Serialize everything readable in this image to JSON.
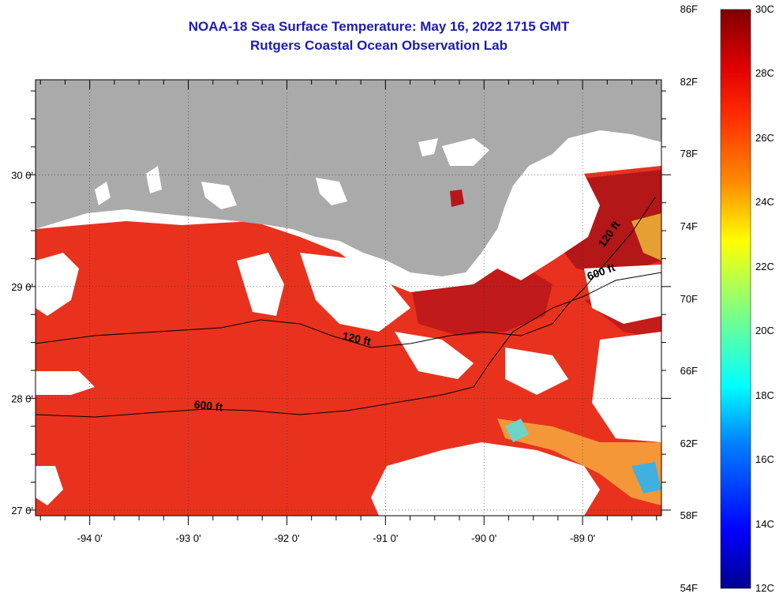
{
  "title": {
    "line1": "NOAA-18 Sea Surface Temperature:  May 16, 2022 1715 GMT",
    "line2": "Rutgers Coastal Ocean Observation Lab"
  },
  "map": {
    "lon_range": [
      -94.55,
      -88.2
    ],
    "lat_range": [
      26.95,
      30.85
    ],
    "x_ticks": [
      {
        "lon": -94,
        "label": "-94 0'"
      },
      {
        "lon": -93,
        "label": "-93 0'"
      },
      {
        "lon": -92,
        "label": "-92 0'"
      },
      {
        "lon": -91,
        "label": "-91 0'"
      },
      {
        "lon": -90,
        "label": "-90 0'"
      },
      {
        "lon": -89,
        "label": "-89 0'"
      }
    ],
    "y_ticks": [
      {
        "lat": 30,
        "label": "30 0'"
      },
      {
        "lat": 29,
        "label": "29 0'"
      },
      {
        "lat": 28,
        "label": "28 0'"
      },
      {
        "lat": 27,
        "label": "27 0'"
      }
    ],
    "contour_labels": [
      {
        "text": "120 ft",
        "lon": -91.3,
        "lat": 28.5
      },
      {
        "text": "600 ft",
        "lon": -92.8,
        "lat": 27.9
      },
      {
        "text": "120 ft",
        "lon": -88.7,
        "lat": 29.45
      },
      {
        "text": "600 ft",
        "lon": -88.8,
        "lat": 29.1
      }
    ],
    "colors": {
      "land": "#aaaaaa",
      "cloud": "#ffffff",
      "water_main": "#e8321e",
      "water_warm": "#b8161a",
      "water_cool": "#f5a23c"
    }
  },
  "colorbar": {
    "range_c": [
      12,
      30
    ],
    "fahrenheit_labels": [
      "86F",
      "82F",
      "78F",
      "74F",
      "70F",
      "66F",
      "62F",
      "58F",
      "54F"
    ],
    "celsius_labels": [
      "30C",
      "28C",
      "26C",
      "24C",
      "22C",
      "20C",
      "18C",
      "16C",
      "14C",
      "12C"
    ]
  }
}
